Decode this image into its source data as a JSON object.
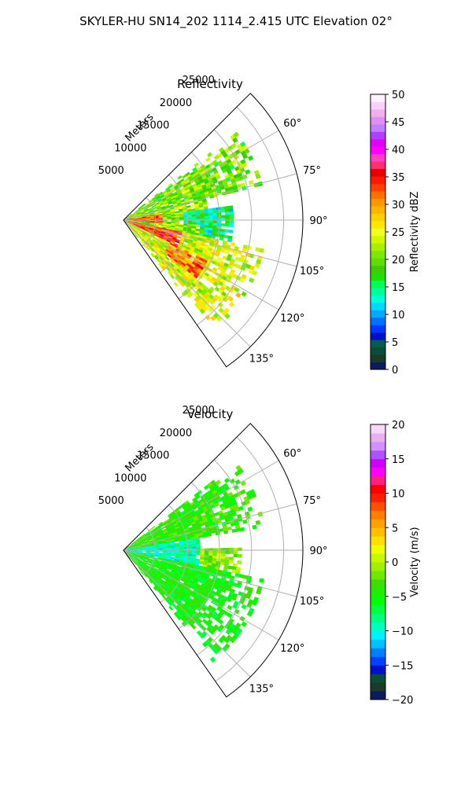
{
  "figure": {
    "suptitle": "SKYLER-HU  SN14_202  1114_2.415 UTC Elevation 02°"
  },
  "colors": {
    "reflectivity_scale": [
      "#0d1b5c",
      "#1a3a2a",
      "#0b4d3a",
      "#0a5a4a",
      "#0010c8",
      "#0038ff",
      "#0070ff",
      "#00a8ff",
      "#00d8ff",
      "#00ffd8",
      "#00ff9a",
      "#00ff50",
      "#20e000",
      "#40cc00",
      "#60dd00",
      "#80e800",
      "#a8f000",
      "#d0f800",
      "#f0ff20",
      "#ffe800",
      "#ffd000",
      "#ffb400",
      "#ff9800",
      "#ff7000",
      "#ff4000",
      "#ff1800",
      "#e80000",
      "#ff3070",
      "#ff40c0",
      "#ff00ff",
      "#e000ff",
      "#b040ff",
      "#c080ff",
      "#e090f0",
      "#f0b0f0",
      "#f8d0f8",
      "#fff0ff"
    ],
    "velocity_scale": [
      "#0d1b5c",
      "#1a3a2a",
      "#0b4d3a",
      "#0010c8",
      "#0040ff",
      "#0080ff",
      "#00c0ff",
      "#00f0ff",
      "#00ffc0",
      "#00ff80",
      "#00ff40",
      "#00ff00",
      "#20ee00",
      "#40dd00",
      "#70e800",
      "#a0f000",
      "#c8f800",
      "#f0ff00",
      "#ffe000",
      "#ffc000",
      "#ffa000",
      "#ff8000",
      "#ff5000",
      "#ff2000",
      "#ff0000",
      "#ff2080",
      "#ff00ff",
      "#d000ff",
      "#b050ff",
      "#d090ff",
      "#e8b0f0",
      "#f8d8f8"
    ],
    "grid": "#b0b0b0"
  },
  "chart_data": [
    {
      "type": "polar-ppi",
      "title": "Reflectivity",
      "radial_label": "Meters",
      "radial_ticks": [
        5000,
        10000,
        15000,
        20000,
        25000
      ],
      "radial_tick_labels": [
        "5000",
        "10000",
        "15000",
        "20000",
        "25000"
      ],
      "r_max": 28000,
      "angle_ticks_deg": [
        60,
        75,
        90,
        105,
        120,
        135
      ],
      "angle_tick_labels": [
        "60°",
        "75°",
        "90°",
        "105°",
        "120°",
        "135°"
      ],
      "sector_deg": [
        45,
        145
      ],
      "colorbar": {
        "label": "Reflectivity dBZ",
        "min": 0,
        "max": 50,
        "ticks": [
          0,
          5,
          10,
          15,
          20,
          25,
          30,
          35,
          40,
          45,
          50
        ],
        "tick_labels": [
          "0",
          "5",
          "10",
          "15",
          "20",
          "25",
          "30",
          "35",
          "40",
          "45",
          "50"
        ]
      },
      "field": {
        "bands": [
          {
            "az": [
              52,
              75
            ],
            "r": [
              0,
              22000
            ],
            "value": 20
          },
          {
            "az": [
              75,
              92
            ],
            "r": [
              0,
              13000
            ],
            "value": 22
          },
          {
            "az": [
              82,
              100
            ],
            "r": [
              9000,
              17000
            ],
            "value": 15
          },
          {
            "az": [
              92,
              108
            ],
            "r": [
              0,
              12000
            ],
            "value": 21
          },
          {
            "az": [
              100,
              140
            ],
            "r": [
              0,
              22000
            ],
            "value": 24
          },
          {
            "az": [
              80,
              95
            ],
            "r": [
              0,
              6000
            ],
            "value": 33
          },
          {
            "az": [
              100,
              115
            ],
            "r": [
              0,
              9000
            ],
            "value": 34
          },
          {
            "az": [
              115,
              128
            ],
            "r": [
              8000,
              14000
            ],
            "value": 31
          }
        ]
      }
    },
    {
      "type": "polar-ppi",
      "title": "Velocity",
      "radial_label": "Meters",
      "radial_ticks": [
        5000,
        10000,
        15000,
        20000,
        25000
      ],
      "radial_tick_labels": [
        "5000",
        "10000",
        "15000",
        "20000",
        "25000"
      ],
      "r_max": 28000,
      "angle_ticks_deg": [
        60,
        75,
        90,
        105,
        120,
        135
      ],
      "angle_tick_labels": [
        "60°",
        "75°",
        "90°",
        "105°",
        "120°",
        "135°"
      ],
      "sector_deg": [
        45,
        145
      ],
      "colorbar": {
        "label": "Velocity (m/s)",
        "min": -20,
        "max": 20,
        "ticks": [
          -20,
          -15,
          -10,
          -5,
          0,
          5,
          10,
          15,
          20
        ],
        "tick_labels": [
          "−20",
          "−15",
          "−10",
          "−5",
          "0",
          "5",
          "10",
          "15",
          "20"
        ]
      },
      "field": {
        "bands": [
          {
            "az": [
              52,
              80
            ],
            "r": [
              0,
              22000
            ],
            "value": -4
          },
          {
            "az": [
              80,
              100
            ],
            "r": [
              0,
              12000
            ],
            "value": -9
          },
          {
            "az": [
              100,
              140
            ],
            "r": [
              0,
              22000
            ],
            "value": -5
          },
          {
            "az": [
              88,
              100
            ],
            "r": [
              12000,
              18000
            ],
            "value": -1
          }
        ]
      }
    }
  ]
}
